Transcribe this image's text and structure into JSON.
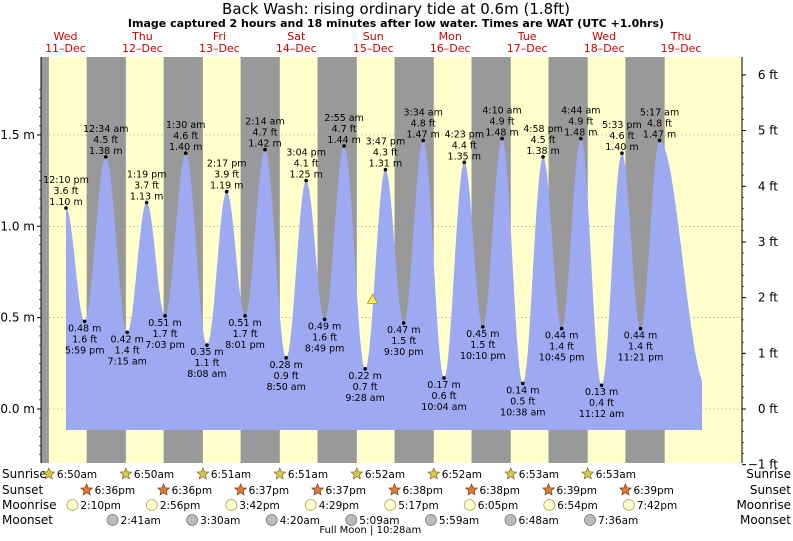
{
  "header": {
    "title": "Back Wash: rising  ordinary tide at 0.6m (1.8ft)",
    "subtitle": "Image captured 2 hours and 18 minutes after low water. Times are WAT (UTC +1.0hrs)"
  },
  "days": [
    {
      "name": "Wed",
      "date": "11–Dec"
    },
    {
      "name": "Thu",
      "date": "12–Dec"
    },
    {
      "name": "Fri",
      "date": "13–Dec"
    },
    {
      "name": "Sat",
      "date": "14–Dec"
    },
    {
      "name": "Sun",
      "date": "15–Dec"
    },
    {
      "name": "Mon",
      "date": "16–Dec"
    },
    {
      "name": "Tue",
      "date": "17–Dec"
    },
    {
      "name": "Wed",
      "date": "18–Dec"
    },
    {
      "name": "Thu",
      "date": "19–Dec"
    }
  ],
  "colors": {
    "night": "#999999",
    "day": "#ffffcc",
    "water": "#9daaf2",
    "day_label": "#cc0000",
    "sunrise_star": "#d8c850",
    "sunset_star": "#e07838",
    "moonrise": "#ffffc8",
    "moonset": "#bbbbbb",
    "current_marker": "#ffee44"
  },
  "chart_data": {
    "type": "area",
    "title": "Back Wash: rising  ordinary tide at 0.6m (1.8ft)",
    "ylabel_left_unit": "m",
    "ylabel_right_unit": "ft",
    "ylim_m": [
      -0.31,
      1.85
    ],
    "yticks_m": [
      {
        "v": 0.0,
        "label": "0.0 m"
      },
      {
        "v": 0.5,
        "label": "0.5 m"
      },
      {
        "v": 1.0,
        "label": "1.0 m"
      },
      {
        "v": 1.5,
        "label": "1.5 m"
      }
    ],
    "yticks_ft": [
      {
        "v": -1,
        "label": "−1 ft"
      },
      {
        "v": 0,
        "label": "0 ft"
      },
      {
        "v": 1,
        "label": "1 ft"
      },
      {
        "v": 2,
        "label": "2 ft"
      },
      {
        "v": 3,
        "label": "3 ft"
      },
      {
        "v": 4,
        "label": "4 ft"
      },
      {
        "v": 5,
        "label": "5 ft"
      },
      {
        "v": 6,
        "label": "6 ft"
      }
    ],
    "grid": true,
    "current": {
      "day": 4,
      "time": "11:46am",
      "height_m": 0.6
    },
    "events": [
      {
        "day": 0,
        "time": "12:10 pm",
        "m": "1.10 m",
        "ft": "3.6 ft",
        "h": 1.1,
        "type": "high"
      },
      {
        "day": 0,
        "time": "5:59 pm",
        "m": "0.48 m",
        "ft": "1.6 ft",
        "h": 0.48,
        "type": "low"
      },
      {
        "day": 1,
        "time": "12:34 am",
        "m": "1.38 m",
        "ft": "4.5 ft",
        "h": 1.38,
        "type": "high"
      },
      {
        "day": 1,
        "time": "7:15 am",
        "m": "0.42 m",
        "ft": "1.4 ft",
        "h": 0.42,
        "type": "low"
      },
      {
        "day": 1,
        "time": "1:19 pm",
        "m": "1.13 m",
        "ft": "3.7 ft",
        "h": 1.13,
        "type": "high"
      },
      {
        "day": 1,
        "time": "7:03 pm",
        "m": "0.51 m",
        "ft": "1.7 ft",
        "h": 0.51,
        "type": "low"
      },
      {
        "day": 2,
        "time": "1:30 am",
        "m": "1.40 m",
        "ft": "4.6 ft",
        "h": 1.4,
        "type": "high"
      },
      {
        "day": 2,
        "time": "8:08 am",
        "m": "0.35 m",
        "ft": "1.1 ft",
        "h": 0.35,
        "type": "low"
      },
      {
        "day": 2,
        "time": "2:17 pm",
        "m": "1.19 m",
        "ft": "3.9 ft",
        "h": 1.19,
        "type": "high"
      },
      {
        "day": 2,
        "time": "8:01 pm",
        "m": "0.51 m",
        "ft": "1.7 ft",
        "h": 0.51,
        "type": "low"
      },
      {
        "day": 3,
        "time": "2:14 am",
        "m": "1.42 m",
        "ft": "4.7 ft",
        "h": 1.42,
        "type": "high"
      },
      {
        "day": 3,
        "time": "8:50 am",
        "m": "0.28 m",
        "ft": "0.9 ft",
        "h": 0.28,
        "type": "low"
      },
      {
        "day": 3,
        "time": "3:04 pm",
        "m": "1.25 m",
        "ft": "4.1 ft",
        "h": 1.25,
        "type": "high"
      },
      {
        "day": 3,
        "time": "8:49 pm",
        "m": "0.49 m",
        "ft": "1.6 ft",
        "h": 0.49,
        "type": "low"
      },
      {
        "day": 4,
        "time": "2:55 am",
        "m": "1.44 m",
        "ft": "4.7 ft",
        "h": 1.44,
        "type": "high"
      },
      {
        "day": 4,
        "time": "9:28 am",
        "m": "0.22 m",
        "ft": "0.7 ft",
        "h": 0.22,
        "type": "low"
      },
      {
        "day": 4,
        "time": "3:47 pm",
        "m": "1.31 m",
        "ft": "4.3 ft",
        "h": 1.31,
        "type": "high"
      },
      {
        "day": 4,
        "time": "9:30 pm",
        "m": "0.47 m",
        "ft": "1.5 ft",
        "h": 0.47,
        "type": "low"
      },
      {
        "day": 5,
        "time": "3:34 am",
        "m": "1.47 m",
        "ft": "4.8 ft",
        "h": 1.47,
        "type": "high"
      },
      {
        "day": 5,
        "time": "10:04 am",
        "m": "0.17 m",
        "ft": "0.6 ft",
        "h": 0.17,
        "type": "low"
      },
      {
        "day": 5,
        "time": "4:23 pm",
        "m": "1.35 m",
        "ft": "4.4 ft",
        "h": 1.35,
        "type": "high"
      },
      {
        "day": 5,
        "time": "10:10 pm",
        "m": "0.45 m",
        "ft": "1.5 ft",
        "h": 0.45,
        "type": "low"
      },
      {
        "day": 6,
        "time": "4:10 am",
        "m": "1.48 m",
        "ft": "4.9 ft",
        "h": 1.48,
        "type": "high"
      },
      {
        "day": 6,
        "time": "10:38 am",
        "m": "0.14 m",
        "ft": "0.5 ft",
        "h": 0.14,
        "type": "low"
      },
      {
        "day": 6,
        "time": "4:58 pm",
        "m": "1.38 m",
        "ft": "4.5 ft",
        "h": 1.38,
        "type": "high"
      },
      {
        "day": 6,
        "time": "10:45 pm",
        "m": "0.44 m",
        "ft": "1.4 ft",
        "h": 0.44,
        "type": "low"
      },
      {
        "day": 7,
        "time": "4:44 am",
        "m": "1.48 m",
        "ft": "4.9 ft",
        "h": 1.48,
        "type": "high"
      },
      {
        "day": 7,
        "time": "11:12 am",
        "m": "0.13 m",
        "ft": "0.4 ft",
        "h": 0.13,
        "type": "low"
      },
      {
        "day": 7,
        "time": "5:33 pm",
        "m": "1.40 m",
        "ft": "4.6 ft",
        "h": 1.4,
        "type": "high"
      },
      {
        "day": 7,
        "time": "11:21 pm",
        "m": "0.44 m",
        "ft": "1.4 ft",
        "h": 0.44,
        "type": "low"
      },
      {
        "day": 8,
        "time": "5:17 am",
        "m": "1.47 m",
        "ft": "4.8 ft",
        "h": 1.47,
        "type": "high"
      }
    ]
  },
  "astro": {
    "row_labels": {
      "sunrise": "Sunrise",
      "sunset": "Sunset",
      "moonrise": "Moonrise",
      "moonset": "Moonset"
    },
    "sunrise": [
      "6:50am",
      "6:50am",
      "6:51am",
      "6:51am",
      "6:52am",
      "6:52am",
      "6:53am",
      "6:53am"
    ],
    "sunset": [
      "6:36pm",
      "6:36pm",
      "6:37pm",
      "6:37pm",
      "6:38pm",
      "6:38pm",
      "6:39pm",
      "6:39pm"
    ],
    "moonrise": [
      "2:10pm",
      "2:56pm",
      "3:42pm",
      "4:29pm",
      "5:17pm",
      "6:05pm",
      "6:54pm",
      "7:42pm"
    ],
    "moonset": [
      "2:41am",
      "3:30am",
      "4:20am",
      "5:09am",
      "5:59am",
      "6:48am",
      "7:36am"
    ],
    "full_moon_note": "Full Moon | 10:28am"
  }
}
